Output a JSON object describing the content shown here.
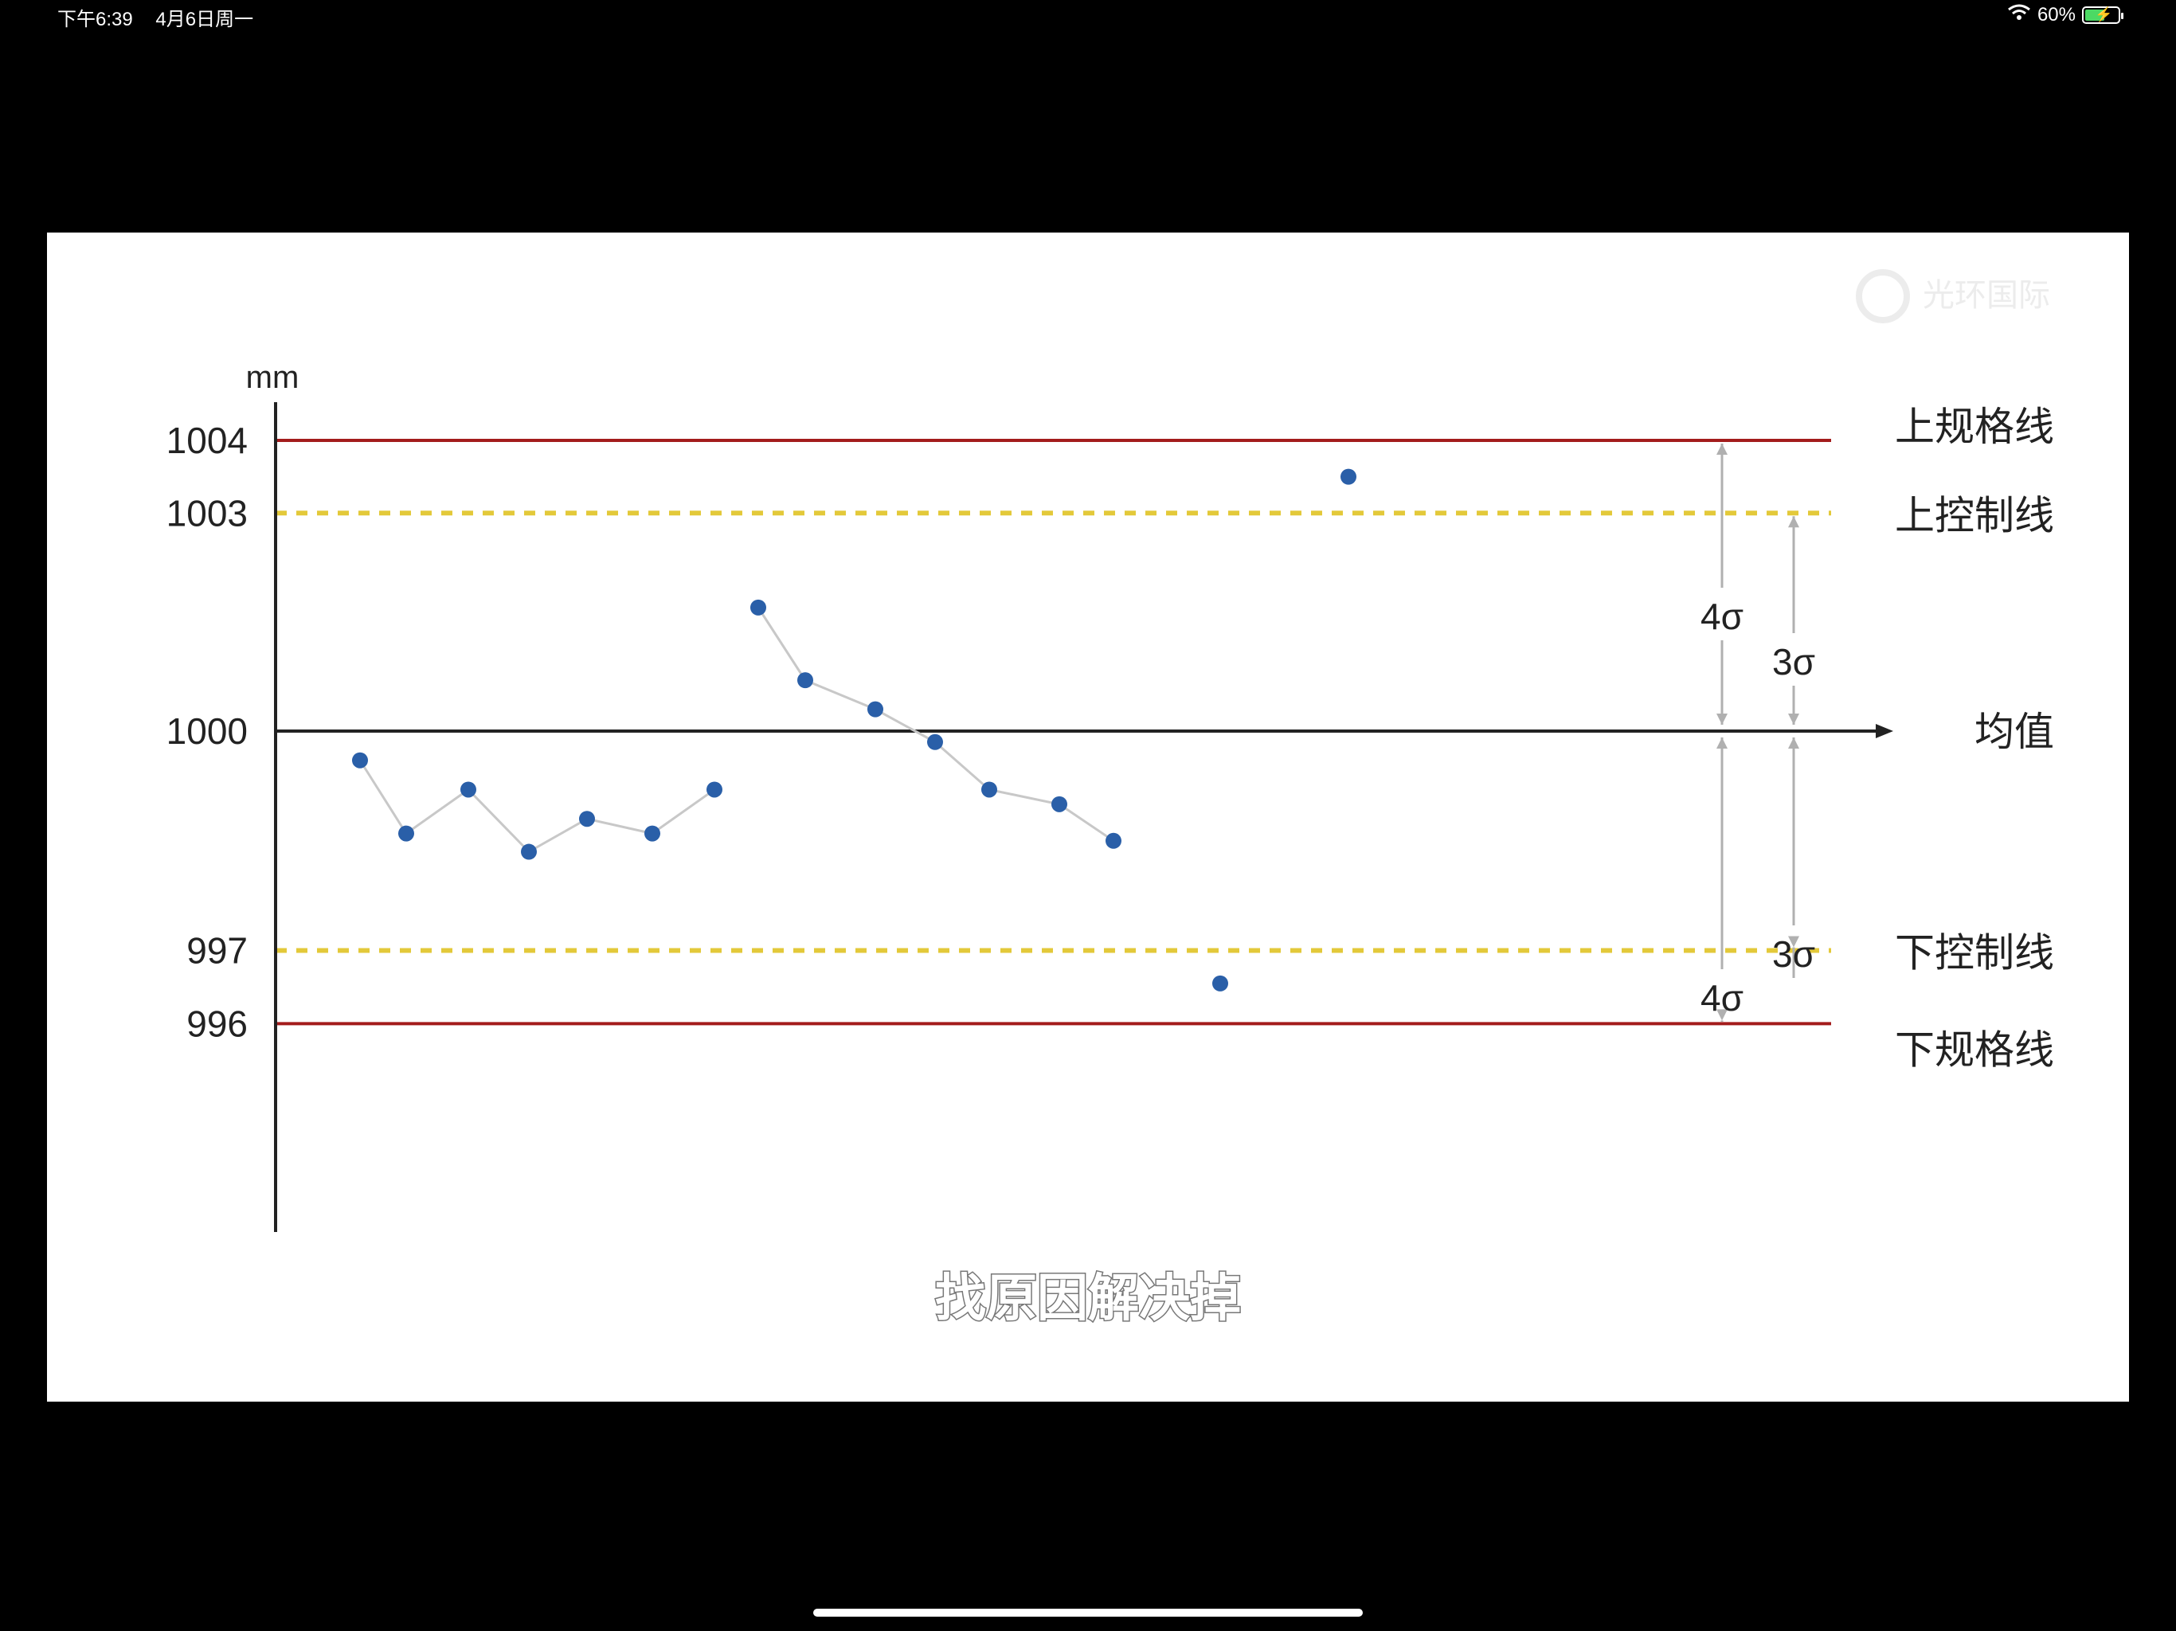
{
  "status_bar": {
    "time": "下午6:39",
    "date": "4月6日周一",
    "battery_percent": "60%",
    "battery_level": 0.6,
    "wifi_icon": "wifi-icon",
    "battery_icon": "battery-charging-icon"
  },
  "watermark": {
    "text": "光环国际"
  },
  "subtitle": "找原因解决掉",
  "colors": {
    "spec_line": "#a31c1c",
    "control_line": "#e3c93a",
    "point": "#2a5fa8",
    "connector": "#c8c8c8",
    "axis": "#222222",
    "arrow": "#b0b0b0"
  },
  "chart_data": {
    "type": "scatter",
    "ylabel": "mm",
    "ylim": [
      995.6,
      1004.4
    ],
    "yticks": [
      "1004",
      "1003",
      "1000",
      "997",
      "996"
    ],
    "ytick_values": [
      1004,
      1003,
      1000,
      997,
      996
    ],
    "reference_lines": [
      {
        "name": "上规格线",
        "value": 1004,
        "style": "solid",
        "color": "#a31c1c"
      },
      {
        "name": "上控制线",
        "value": 1003,
        "style": "dashed",
        "color": "#e3c93a"
      },
      {
        "name": "均值",
        "value": 1000,
        "style": "axis",
        "color": "#222222"
      },
      {
        "name": "下控制线",
        "value": 997,
        "style": "dashed",
        "color": "#e3c93a"
      },
      {
        "name": "下规格线",
        "value": 996,
        "style": "solid",
        "color": "#a31c1c"
      }
    ],
    "sigma_annotations": [
      {
        "label": "4σ",
        "from": 1000,
        "to": 1004
      },
      {
        "label": "3σ",
        "from": 1000,
        "to": 1003
      },
      {
        "label": "3σ",
        "from": 1000,
        "to": 997
      },
      {
        "label": "4σ",
        "from": 1000,
        "to": 996
      }
    ],
    "series": [
      {
        "x": [
          1,
          2,
          3,
          4,
          5,
          6,
          7
        ],
        "values": [
          999.6,
          998.6,
          999.2,
          998.35,
          998.8,
          998.6,
          999.2
        ],
        "connected": true
      },
      {
        "x": [
          8,
          9,
          10,
          11,
          12,
          13,
          14
        ],
        "values": [
          1001.7,
          1000.7,
          1000.3,
          999.85,
          999.2,
          999.0,
          998.5
        ],
        "connected": true
      },
      {
        "x": [
          15
        ],
        "values": [
          996.55
        ],
        "connected": false
      },
      {
        "x": [
          16
        ],
        "values": [
          1003.5
        ],
        "connected": false
      }
    ]
  }
}
